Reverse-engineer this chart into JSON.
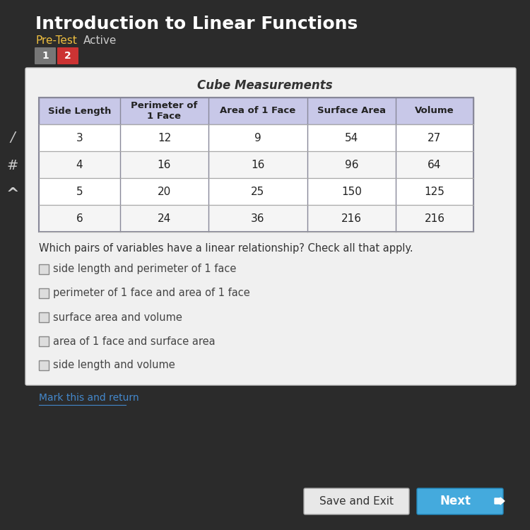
{
  "title": "Introduction to Linear Functions",
  "table_title": "Cube Measurements",
  "table_headers": [
    "Side Length",
    "Perimeter of\n1 Face",
    "Area of 1 Face",
    "Surface Area",
    "Volume"
  ],
  "table_data": [
    [
      "3",
      "12",
      "9",
      "54",
      "27"
    ],
    [
      "4",
      "16",
      "16",
      "96",
      "64"
    ],
    [
      "5",
      "20",
      "25",
      "150",
      "125"
    ],
    [
      "6",
      "24",
      "36",
      "216",
      "216"
    ]
  ],
  "question": "Which pairs of variables have a linear relationship? Check all that apply.",
  "options": [
    "side length and perimeter of 1 face",
    "perimeter of 1 face and area of 1 face",
    "surface area and volume",
    "area of 1 face and surface area",
    "side length and volume"
  ],
  "bg_color": "#2b2b2b",
  "panel_color": "#f0f0f0",
  "header_color": "#c8c8e8",
  "title_color": "#ffffff",
  "subtitle_pretest_color": "#f0c040",
  "subtitle_active_color": "#cccccc",
  "tab1_color": "#777777",
  "tab2_color": "#cc3333",
  "table_title_color": "#333333",
  "question_color": "#333333",
  "option_color": "#444444",
  "button_save_color": "#e8e8e8",
  "button_next_color": "#44aadd",
  "mark_link_color": "#4488cc"
}
